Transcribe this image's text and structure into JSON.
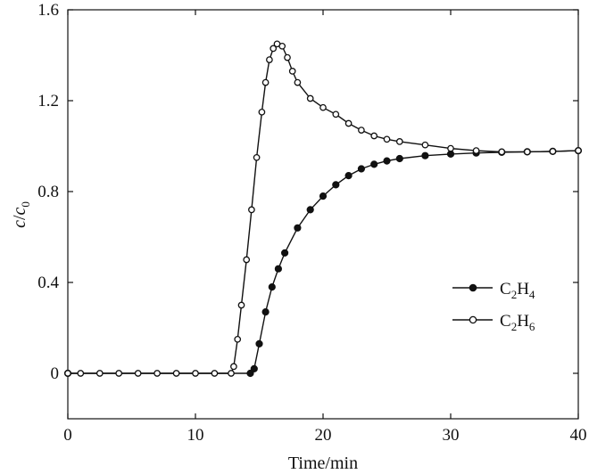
{
  "chart_data": {
    "type": "line",
    "title": "",
    "xlabel": "Time/min",
    "ylabel": {
      "base": "c",
      "sep": "/",
      "sub_base": "c",
      "sub": "0"
    },
    "xlim": [
      0,
      40
    ],
    "ylim": [
      -0.2,
      1.6
    ],
    "xticks": [
      "0",
      "10",
      "20",
      "30",
      "40"
    ],
    "yticks": [
      "0",
      "0.4",
      "0.8",
      "1.2",
      "1.6"
    ],
    "grid": false,
    "legend_position": "right-middle",
    "series": [
      {
        "name": "C2H4",
        "legend": {
          "p1": "C",
          "s1": "2",
          "p2": "H",
          "s2": "4"
        },
        "marker": "filled-circle",
        "color": "#111111",
        "points": [
          [
            0,
            0.0
          ],
          [
            14.3,
            0.0
          ],
          [
            14.6,
            0.02
          ],
          [
            15.0,
            0.13
          ],
          [
            15.5,
            0.27
          ],
          [
            16.0,
            0.38
          ],
          [
            16.5,
            0.46
          ],
          [
            17.0,
            0.53
          ],
          [
            18.0,
            0.64
          ],
          [
            19.0,
            0.72
          ],
          [
            20.0,
            0.78
          ],
          [
            21.0,
            0.83
          ],
          [
            22.0,
            0.87
          ],
          [
            23.0,
            0.9
          ],
          [
            24.0,
            0.92
          ],
          [
            25.0,
            0.935
          ],
          [
            26.0,
            0.945
          ],
          [
            28.0,
            0.958
          ],
          [
            30.0,
            0.965
          ],
          [
            32.0,
            0.97
          ],
          [
            34.0,
            0.973
          ],
          [
            36.0,
            0.975
          ],
          [
            38.0,
            0.977
          ],
          [
            40.0,
            0.98
          ]
        ]
      },
      {
        "name": "C2H6",
        "legend": {
          "p1": "C",
          "s1": "2",
          "p2": "H",
          "s2": "6"
        },
        "marker": "open-circle",
        "color": "#111111",
        "points": [
          [
            0,
            0.0
          ],
          [
            1.0,
            0.0
          ],
          [
            2.5,
            0.0
          ],
          [
            4.0,
            0.0
          ],
          [
            5.5,
            0.0
          ],
          [
            7.0,
            0.0
          ],
          [
            8.5,
            0.0
          ],
          [
            10.0,
            0.0
          ],
          [
            11.5,
            0.0
          ],
          [
            12.8,
            0.0
          ],
          [
            13.0,
            0.03
          ],
          [
            13.3,
            0.15
          ],
          [
            13.6,
            0.3
          ],
          [
            14.0,
            0.5
          ],
          [
            14.4,
            0.72
          ],
          [
            14.8,
            0.95
          ],
          [
            15.2,
            1.15
          ],
          [
            15.5,
            1.28
          ],
          [
            15.8,
            1.38
          ],
          [
            16.1,
            1.43
          ],
          [
            16.4,
            1.45
          ],
          [
            16.8,
            1.44
          ],
          [
            17.2,
            1.39
          ],
          [
            17.6,
            1.33
          ],
          [
            18.0,
            1.28
          ],
          [
            19.0,
            1.21
          ],
          [
            20.0,
            1.17
          ],
          [
            21.0,
            1.14
          ],
          [
            22.0,
            1.1
          ],
          [
            23.0,
            1.07
          ],
          [
            24.0,
            1.045
          ],
          [
            25.0,
            1.03
          ],
          [
            26.0,
            1.02
          ],
          [
            28.0,
            1.005
          ],
          [
            30.0,
            0.99
          ],
          [
            32.0,
            0.98
          ],
          [
            34.0,
            0.975
          ],
          [
            36.0,
            0.975
          ],
          [
            38.0,
            0.977
          ],
          [
            40.0,
            0.98
          ]
        ]
      }
    ]
  }
}
